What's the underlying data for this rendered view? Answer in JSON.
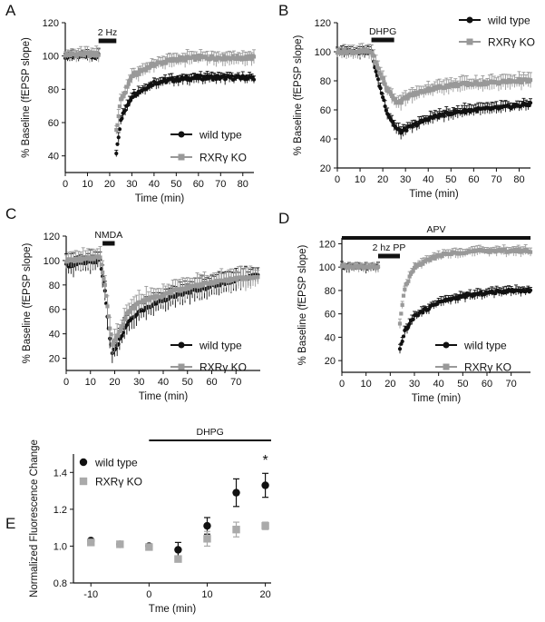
{
  "chart_data": [
    {
      "id": "A",
      "letter": "A",
      "type": "scatter",
      "xlabel": "Time (min)",
      "ylabel": "% Baseline (fEPSP slope)",
      "xlim": [
        0,
        85
      ],
      "ylim": [
        30,
        120
      ],
      "xticks": [
        0,
        10,
        20,
        30,
        40,
        50,
        60,
        70,
        80
      ],
      "yticks": [
        40,
        60,
        80,
        100,
        120
      ],
      "bar": {
        "label": "2 Hz",
        "start": 15,
        "end": 23
      },
      "legend_position": "bottom-right",
      "series": [
        {
          "name": "wild type",
          "color": "#111111",
          "marker": "circle",
          "gap": [
            15,
            23
          ],
          "points": [
            [
              0,
              100
            ],
            [
              15,
              100
            ],
            [
              23,
              42
            ],
            [
              25,
              62
            ],
            [
              30,
              76
            ],
            [
              40,
              84
            ],
            [
              50,
              86
            ],
            [
              60,
              87
            ],
            [
              70,
              87
            ],
            [
              80,
              87
            ],
            [
              85,
              87
            ]
          ],
          "err": 3
        },
        {
          "name": "RXRγ KO",
          "color": "#999999",
          "marker": "square",
          "gap": [
            15,
            23
          ],
          "points": [
            [
              0,
              101
            ],
            [
              15,
              101
            ],
            [
              23,
              55
            ],
            [
              25,
              73
            ],
            [
              30,
              88
            ],
            [
              40,
              95
            ],
            [
              50,
              98
            ],
            [
              60,
              99
            ],
            [
              70,
              99
            ],
            [
              80,
              99
            ],
            [
              85,
              99
            ]
          ],
          "err": 4
        }
      ]
    },
    {
      "id": "B",
      "letter": "B",
      "type": "scatter",
      "xlabel": "Time (min)",
      "ylabel": "% Baseline (fEPSP slope)",
      "xlim": [
        0,
        85
      ],
      "ylim": [
        20,
        120
      ],
      "xticks": [
        0,
        10,
        20,
        30,
        40,
        50,
        60,
        70,
        80
      ],
      "yticks": [
        20,
        40,
        60,
        80,
        100,
        120
      ],
      "bar": {
        "label": "DHPG",
        "start": 15,
        "end": 25
      },
      "legend_position": "top-right",
      "series": [
        {
          "name": "wild type",
          "color": "#111111",
          "marker": "circle",
          "points": [
            [
              0,
              100
            ],
            [
              15,
              100
            ],
            [
              18,
              80
            ],
            [
              22,
              58
            ],
            [
              26,
              47
            ],
            [
              28,
              45
            ],
            [
              32,
              48
            ],
            [
              40,
              54
            ],
            [
              50,
              58
            ],
            [
              60,
              60
            ],
            [
              70,
              61
            ],
            [
              80,
              63
            ],
            [
              85,
              64
            ]
          ],
          "err": 4
        },
        {
          "name": "RXRγ KO",
          "color": "#999999",
          "marker": "square",
          "points": [
            [
              0,
              100
            ],
            [
              15,
              100
            ],
            [
              18,
              88
            ],
            [
              22,
              74
            ],
            [
              26,
              66
            ],
            [
              28,
              66
            ],
            [
              32,
              70
            ],
            [
              40,
              74
            ],
            [
              50,
              77
            ],
            [
              60,
              78
            ],
            [
              70,
              79
            ],
            [
              80,
              80
            ],
            [
              85,
              80
            ]
          ],
          "err": 5
        }
      ]
    },
    {
      "id": "C",
      "letter": "C",
      "type": "scatter",
      "xlabel": "Time (min)",
      "ylabel": "% Baseline (fEPSP slope)",
      "xlim": [
        0,
        80
      ],
      "ylim": [
        10,
        120
      ],
      "xticks": [
        0,
        10,
        20,
        30,
        40,
        50,
        60,
        70
      ],
      "yticks": [
        20,
        40,
        60,
        80,
        100,
        120
      ],
      "bar": {
        "label": "NMDA",
        "start": 15,
        "end": 20
      },
      "legend_position": "bottom-right",
      "series": [
        {
          "name": "wild type",
          "color": "#111111",
          "marker": "circle",
          "points": [
            [
              0,
              96
            ],
            [
              8,
              98
            ],
            [
              14,
              100
            ],
            [
              16,
              75
            ],
            [
              18,
              35
            ],
            [
              19,
              25
            ],
            [
              21,
              30
            ],
            [
              25,
              48
            ],
            [
              30,
              58
            ],
            [
              40,
              68
            ],
            [
              50,
              74
            ],
            [
              60,
              79
            ],
            [
              70,
              84
            ],
            [
              79,
              88
            ]
          ],
          "err": 9
        },
        {
          "name": "RXRγ KO",
          "color": "#999999",
          "marker": "square",
          "points": [
            [
              0,
              100
            ],
            [
              8,
              101
            ],
            [
              14,
              103
            ],
            [
              16,
              80
            ],
            [
              18,
              45
            ],
            [
              19,
              32
            ],
            [
              21,
              38
            ],
            [
              25,
              56
            ],
            [
              30,
              66
            ],
            [
              40,
              72
            ],
            [
              50,
              78
            ],
            [
              60,
              82
            ],
            [
              70,
              85
            ],
            [
              79,
              86
            ]
          ],
          "err": 9
        }
      ]
    },
    {
      "id": "D",
      "letter": "D",
      "type": "scatter",
      "xlabel": "Time (min)",
      "ylabel": "% Baseline (fEPSP slope)",
      "xlim": [
        0,
        78
      ],
      "ylim": [
        10,
        125
      ],
      "xticks": [
        0,
        10,
        20,
        30,
        40,
        50,
        60,
        70
      ],
      "yticks": [
        20,
        40,
        60,
        80,
        100,
        120
      ],
      "topbar": {
        "label": "APV",
        "start": 0,
        "end": 78
      },
      "bar": {
        "label": "2 hz PP",
        "start": 15,
        "end": 24
      },
      "legend_position": "bottom-right",
      "series": [
        {
          "name": "wild type",
          "color": "#111111",
          "marker": "circle",
          "gap": [
            15,
            24
          ],
          "points": [
            [
              0,
              100
            ],
            [
              15,
              100
            ],
            [
              24,
              30
            ],
            [
              26,
              45
            ],
            [
              30,
              58
            ],
            [
              40,
              70
            ],
            [
              50,
              75
            ],
            [
              60,
              78
            ],
            [
              70,
              80
            ],
            [
              78,
              80
            ]
          ],
          "err": 4
        },
        {
          "name": "RXRγ KO",
          "color": "#999999",
          "marker": "square",
          "gap": [
            15,
            24
          ],
          "points": [
            [
              0,
              100
            ],
            [
              15,
              100
            ],
            [
              24,
              52
            ],
            [
              26,
              82
            ],
            [
              30,
              100
            ],
            [
              40,
              110
            ],
            [
              50,
              113
            ],
            [
              60,
              114
            ],
            [
              70,
              114
            ],
            [
              78,
              114
            ]
          ],
          "err": 4
        }
      ]
    },
    {
      "id": "E",
      "letter": "E",
      "type": "scatter",
      "xlabel": "Tme (min)",
      "ylabel": "Normalized Fluorescence Change",
      "xlim": [
        -13,
        21
      ],
      "ylim": [
        0.8,
        1.5
      ],
      "xticks": [
        -10,
        0,
        10,
        20
      ],
      "yticks": [
        0.8,
        1.0,
        1.2,
        1.4
      ],
      "topbar": {
        "label": "DHPG",
        "start": 0,
        "end": 21
      },
      "annotation": {
        "text": "*",
        "x": 20,
        "y": 1.44
      },
      "legend_position": "top-left",
      "series": [
        {
          "name": "wild type",
          "color": "#111111",
          "marker": "circle",
          "size": 4.2,
          "x": [
            -10,
            -5,
            0,
            5,
            10,
            15,
            20
          ],
          "values": [
            1.03,
            1.01,
            1.0,
            0.98,
            1.11,
            1.29,
            1.33
          ],
          "errors": [
            0.0,
            0.0,
            0.0,
            0.04,
            0.045,
            0.075,
            0.065
          ]
        },
        {
          "name": "RXRγ KO",
          "color": "#aaaaaa",
          "marker": "square",
          "size": 4.2,
          "x": [
            -10,
            -5,
            0,
            5,
            10,
            15,
            20
          ],
          "values": [
            1.02,
            1.01,
            0.995,
            0.93,
            1.04,
            1.09,
            1.11
          ],
          "errors": [
            0.0,
            0.0,
            0.0,
            0.0,
            0.04,
            0.04,
            0.02
          ]
        }
      ]
    }
  ]
}
